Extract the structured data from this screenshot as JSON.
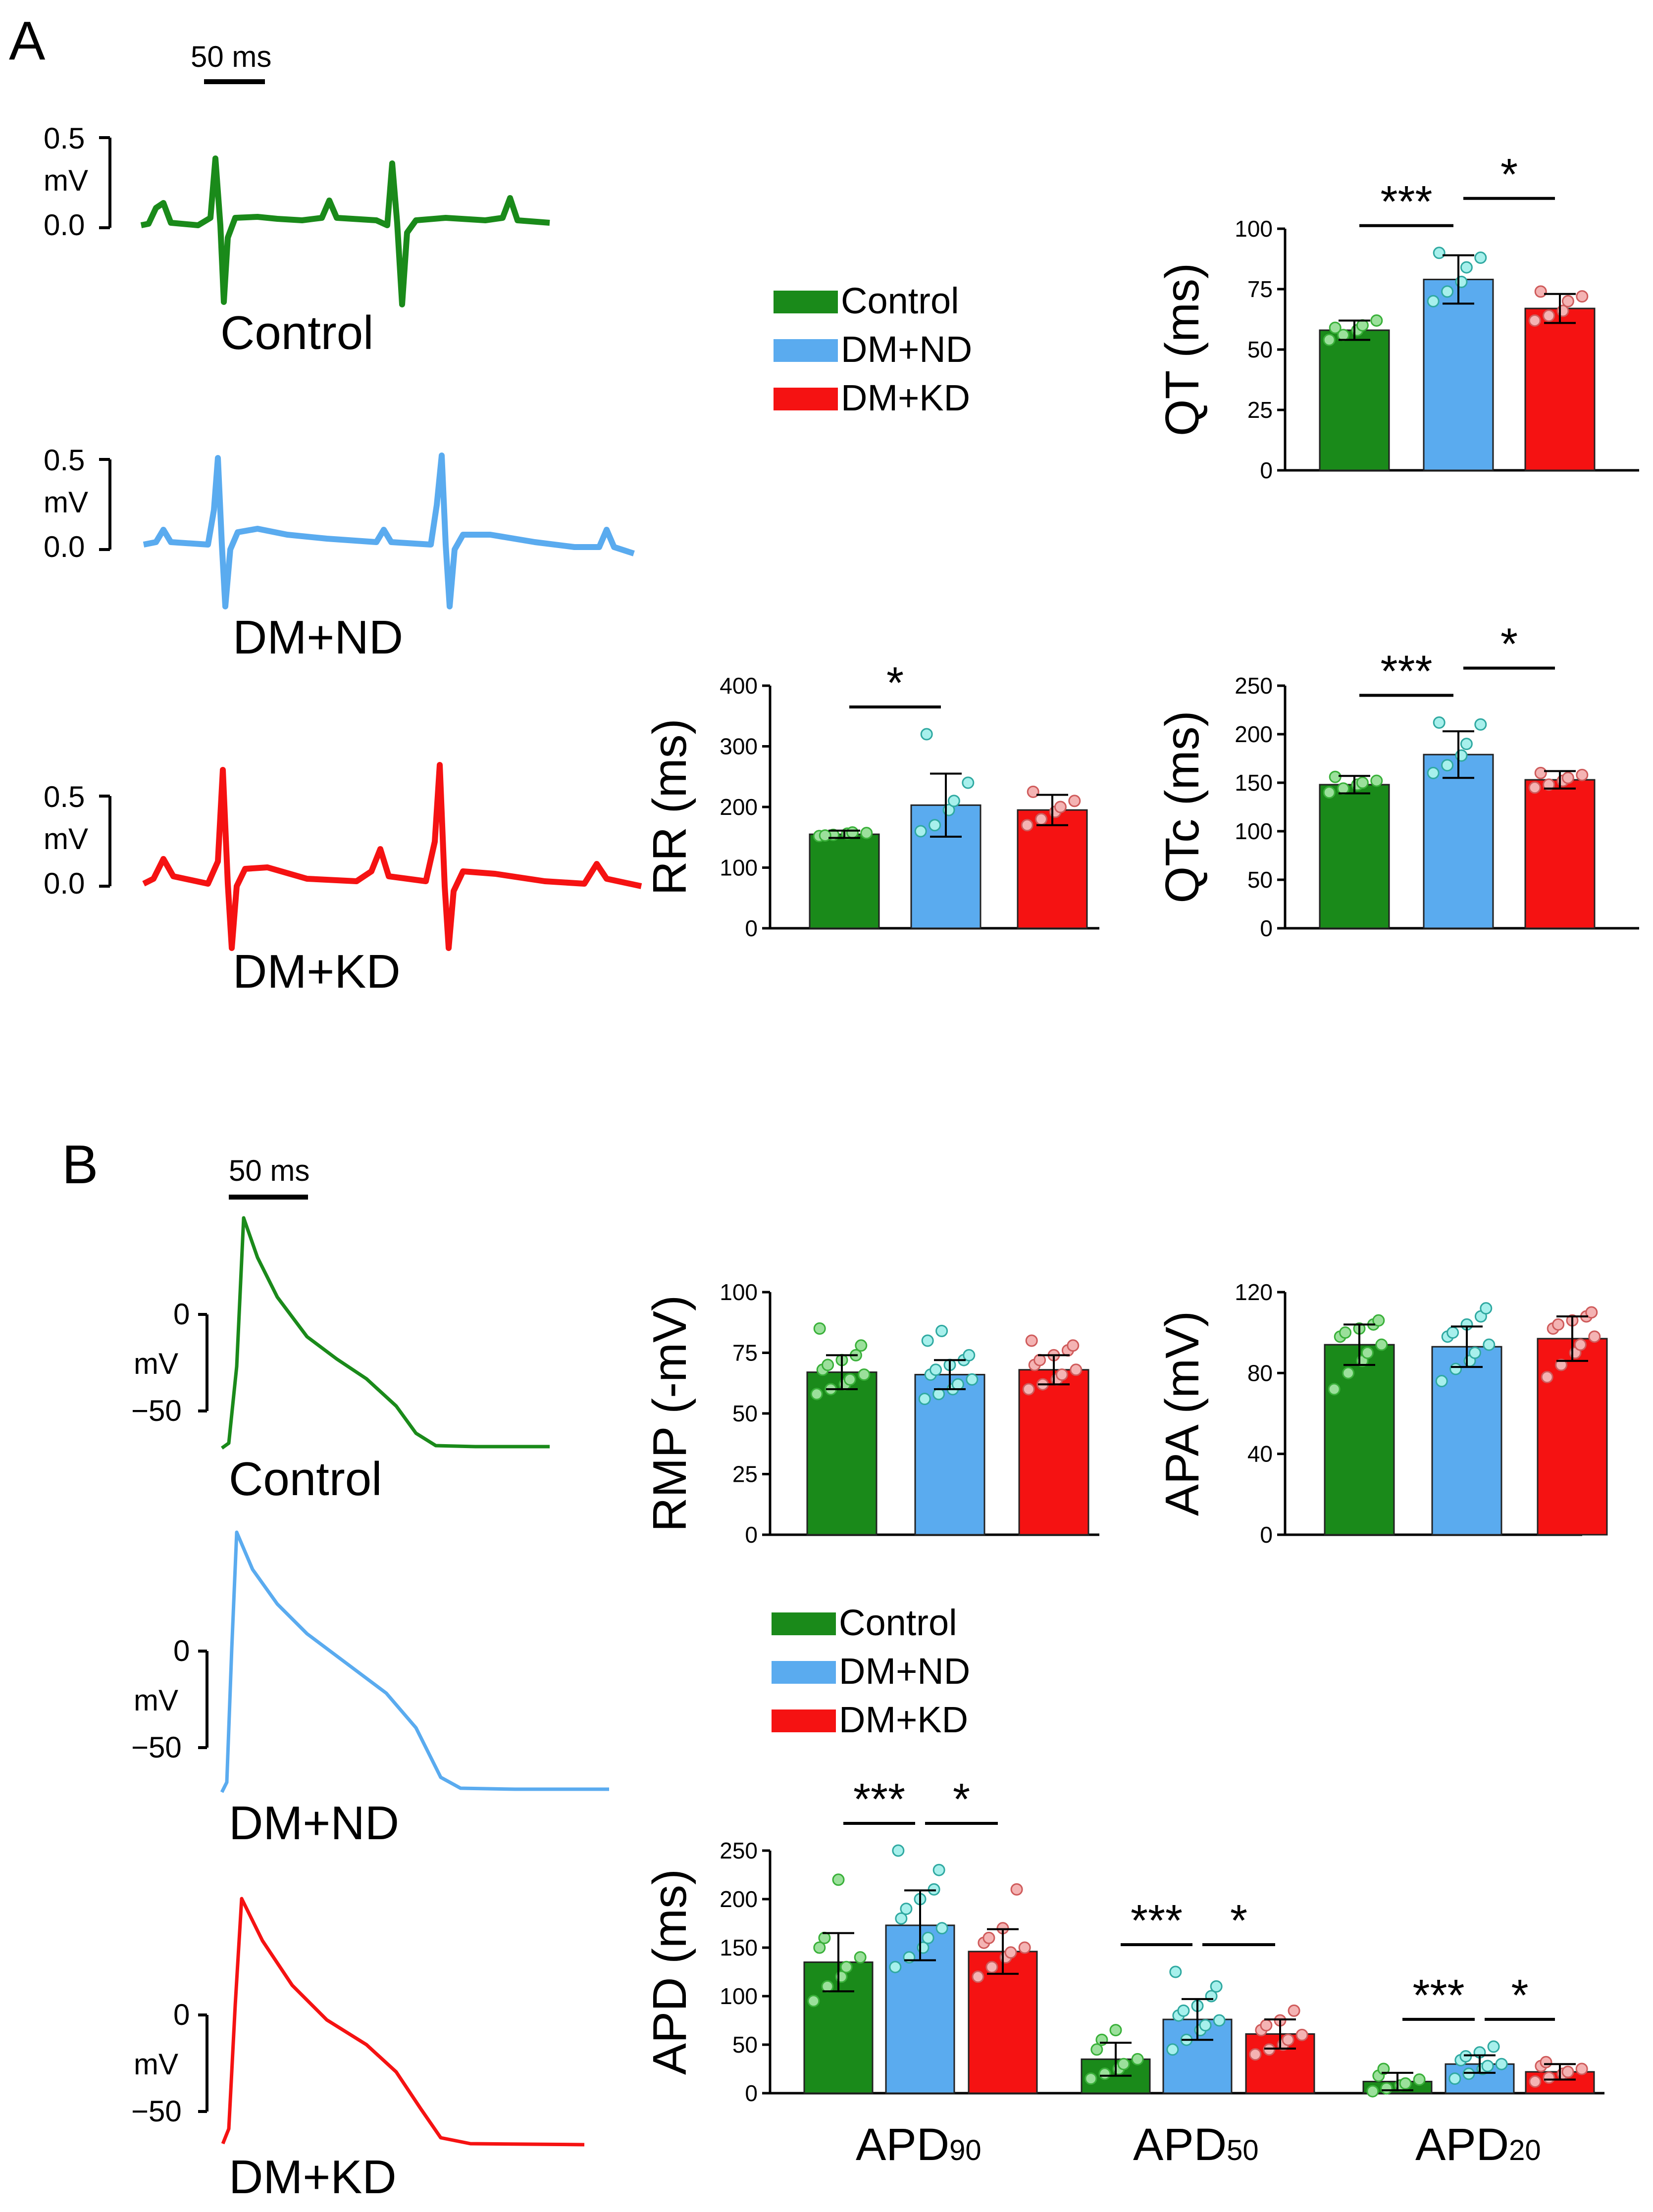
{
  "panel_labels": [
    "A",
    "B"
  ],
  "colors": {
    "control": "#1a8a1a",
    "dmnd": "#5aabef",
    "dmkd": "#f51212"
  },
  "panelA": {
    "scale_label": "50 ms",
    "trace_axis": {
      "top": "0.5",
      "unit": "mV",
      "bottom": "0.0"
    },
    "traces": [
      {
        "label": "Control",
        "color": "#1a8a1a"
      },
      {
        "label": "DM+ND",
        "color": "#5aabef"
      },
      {
        "label": "DM+KD",
        "color": "#f51212"
      }
    ],
    "legend": [
      "Control",
      "DM+ND",
      "DM+KD"
    ]
  },
  "panelB": {
    "scale_label": "50 ms",
    "trace_axis": {
      "top": "0",
      "unit": "mV",
      "bottom": "−50"
    },
    "traces": [
      {
        "label": "Control",
        "color": "#1a8a1a"
      },
      {
        "label": "DM+ND",
        "color": "#5aabef"
      },
      {
        "label": "DM+KD",
        "color": "#f51212"
      }
    ],
    "legend": [
      "Control",
      "DM+ND",
      "DM+KD"
    ]
  },
  "chart_data": [
    {
      "id": "qt",
      "type": "bar",
      "title": "",
      "ylabel": "QT (ms)",
      "ylim": [
        0,
        100
      ],
      "yticks": [
        0,
        25,
        50,
        75,
        100
      ],
      "categories": [
        "Control",
        "DM+ND",
        "DM+KD"
      ],
      "values": [
        58,
        79,
        67
      ],
      "errors": [
        4,
        10,
        6
      ],
      "points": [
        [
          54,
          56,
          58,
          60,
          62,
          59
        ],
        [
          70,
          74,
          78,
          84,
          88,
          90
        ],
        [
          62,
          64,
          66,
          70,
          72,
          74
        ]
      ],
      "significance": [
        {
          "from": 0,
          "to": 1,
          "label": "***"
        },
        {
          "from": 1,
          "to": 2,
          "label": "*"
        }
      ]
    },
    {
      "id": "rr",
      "type": "bar",
      "title": "",
      "ylabel": "RR (ms)",
      "ylim": [
        0,
        400
      ],
      "yticks": [
        0,
        100,
        200,
        300,
        400
      ],
      "categories": [
        "Control",
        "DM+ND",
        "DM+KD"
      ],
      "values": [
        155,
        203,
        195
      ],
      "errors": [
        6,
        52,
        25
      ],
      "points": [
        [
          152,
          154,
          156,
          158,
          157,
          153
        ],
        [
          160,
          170,
          195,
          210,
          240,
          320
        ],
        [
          170,
          180,
          192,
          200,
          210,
          225
        ]
      ],
      "significance": [
        {
          "from": 0,
          "to": 1,
          "label": "*"
        }
      ]
    },
    {
      "id": "qtc",
      "type": "bar",
      "title": "",
      "ylabel": "QTc (ms)",
      "ylim": [
        0,
        250
      ],
      "yticks": [
        0,
        50,
        100,
        150,
        200,
        250
      ],
      "categories": [
        "Control",
        "DM+ND",
        "DM+KD"
      ],
      "values": [
        148,
        179,
        153
      ],
      "errors": [
        9,
        24,
        9
      ],
      "points": [
        [
          140,
          144,
          148,
          150,
          152,
          156
        ],
        [
          160,
          168,
          178,
          190,
          210,
          212
        ],
        [
          145,
          148,
          152,
          155,
          158,
          160
        ]
      ],
      "significance": [
        {
          "from": 0,
          "to": 1,
          "label": "***"
        },
        {
          "from": 1,
          "to": 2,
          "label": "*"
        }
      ]
    },
    {
      "id": "rmp",
      "type": "bar",
      "title": "",
      "ylabel": "RMP (-mV)",
      "ylim": [
        0,
        100
      ],
      "yticks": [
        0,
        25,
        50,
        75,
        100
      ],
      "categories": [
        "Control",
        "DM+ND",
        "DM+KD"
      ],
      "values": [
        67,
        66,
        68
      ],
      "errors": [
        7,
        6,
        6
      ],
      "points": [
        [
          58,
          60,
          62,
          64,
          66,
          68,
          70,
          72,
          74,
          78,
          85
        ],
        [
          56,
          58,
          60,
          62,
          64,
          66,
          68,
          70,
          72,
          74,
          80,
          84
        ],
        [
          60,
          62,
          64,
          66,
          68,
          70,
          72,
          74,
          76,
          78,
          80
        ]
      ],
      "significance": []
    },
    {
      "id": "apa",
      "type": "bar",
      "title": "",
      "ylabel": "APA (mV)",
      "ylim": [
        0,
        120
      ],
      "yticks": [
        0,
        40,
        80,
        120
      ],
      "categories": [
        "Control",
        "DM+ND",
        "DM+KD"
      ],
      "values": [
        94,
        93,
        97
      ],
      "errors": [
        10,
        10,
        11
      ],
      "points": [
        [
          72,
          80,
          86,
          90,
          94,
          98,
          100,
          102,
          104,
          106
        ],
        [
          76,
          82,
          86,
          90,
          94,
          98,
          100,
          104,
          108,
          112
        ],
        [
          78,
          84,
          90,
          94,
          98,
          102,
          104,
          106,
          108,
          110
        ]
      ],
      "significance": []
    },
    {
      "id": "apd",
      "type": "bar",
      "title": "",
      "ylabel": "APD (ms)",
      "ylim": [
        0,
        250
      ],
      "yticks": [
        0,
        50,
        100,
        150,
        200,
        250
      ],
      "categories": [
        "APD90",
        "APD50",
        "APD20"
      ],
      "category_labels": [
        {
          "main": "APD",
          "sub": "90"
        },
        {
          "main": "APD",
          "sub": "50"
        },
        {
          "main": "APD",
          "sub": "20"
        }
      ],
      "series": [
        {
          "name": "Control",
          "values": [
            135,
            35,
            12
          ],
          "errors": [
            30,
            17,
            9
          ],
          "points": [
            [
              95,
              110,
              120,
              130,
              140,
              150,
              160,
              220
            ],
            [
              15,
              20,
              25,
              30,
              35,
              45,
              55,
              65
            ],
            [
              2,
              5,
              8,
              10,
              14,
              18,
              25
            ]
          ]
        },
        {
          "name": "DM+ND",
          "values": [
            173,
            76,
            30
          ],
          "errors": [
            36,
            21,
            9
          ],
          "points": [
            [
              130,
              140,
              150,
              160,
              170,
              180,
              190,
              200,
              210,
              230,
              250
            ],
            [
              45,
              55,
              65,
              70,
              75,
              80,
              85,
              90,
              100,
              110,
              125
            ],
            [
              15,
              20,
              25,
              28,
              30,
              34,
              38,
              42,
              48
            ]
          ]
        },
        {
          "name": "DM+KD",
          "values": [
            146,
            61,
            22
          ],
          "errors": [
            23,
            15,
            8
          ],
          "points": [
            [
              120,
              130,
              140,
              145,
              150,
              155,
              160,
              170,
              210
            ],
            [
              40,
              45,
              50,
              55,
              60,
              65,
              70,
              75,
              85
            ],
            [
              12,
              16,
              20,
              22,
              25,
              28,
              32
            ]
          ]
        }
      ],
      "significance": [
        {
          "group": 0,
          "from": 0,
          "to": 1,
          "label": "***"
        },
        {
          "group": 0,
          "from": 1,
          "to": 2,
          "label": "*"
        },
        {
          "group": 1,
          "from": 0,
          "to": 1,
          "label": "***"
        },
        {
          "group": 1,
          "from": 1,
          "to": 2,
          "label": "*"
        },
        {
          "group": 2,
          "from": 0,
          "to": 1,
          "label": "***"
        },
        {
          "group": 2,
          "from": 1,
          "to": 2,
          "label": "*"
        }
      ]
    }
  ]
}
